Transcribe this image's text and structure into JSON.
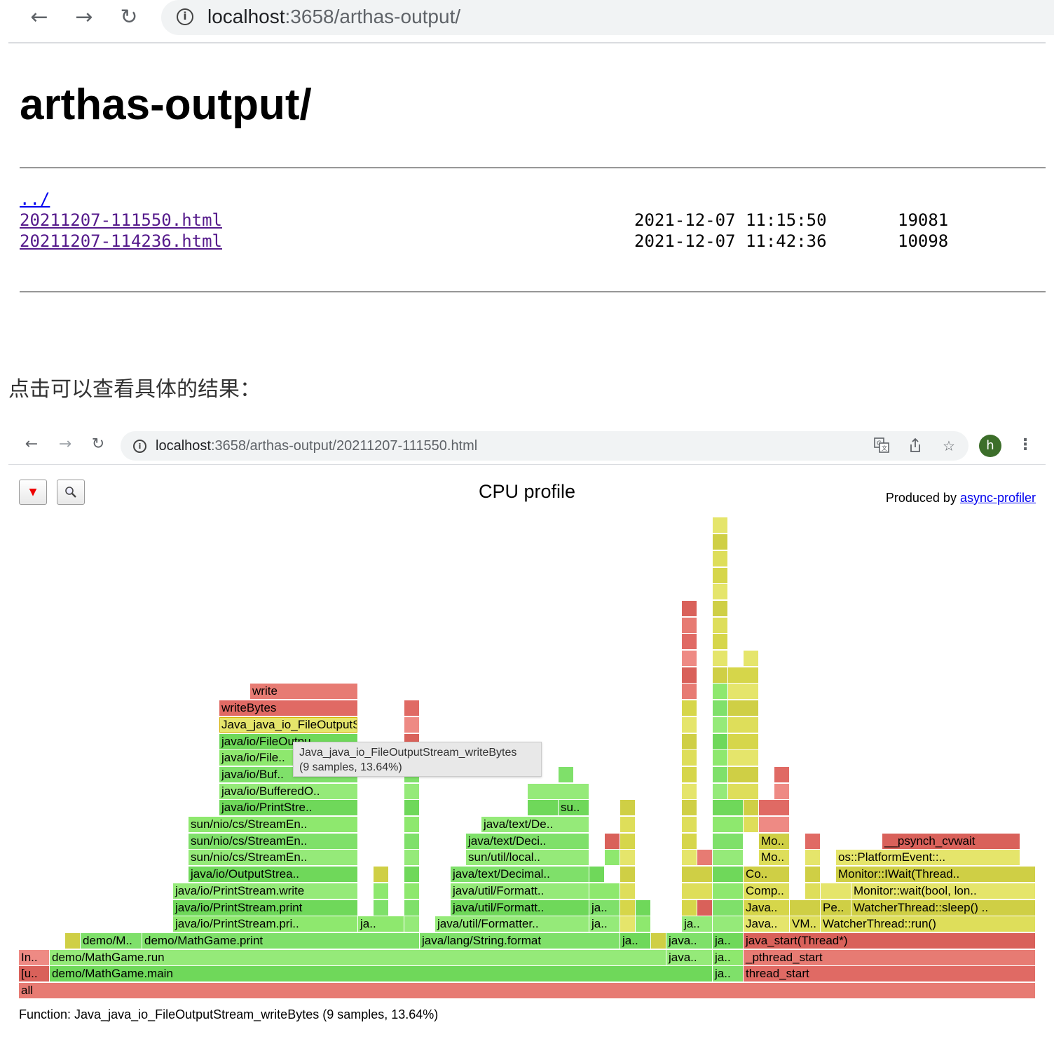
{
  "browser_top": {
    "url_host": "localhost",
    "url_rest": ":3658/arthas-output/"
  },
  "listing": {
    "heading": "arthas-output/",
    "parent_link": "../",
    "entries": [
      {
        "name": "20211207-111550.html",
        "date": "2021-12-07 11:15:50",
        "size": "19081"
      },
      {
        "name": "20211207-114236.html",
        "date": "2021-12-07 11:42:36",
        "size": "10098"
      }
    ]
  },
  "caption": "点击可以查看具体的结果：",
  "browser_inner": {
    "url_host": "localhost",
    "url_rest": ":3658/arthas-output/20211207-111550.html",
    "avatar_letter": "h",
    "icons": [
      "back-icon",
      "forward-icon",
      "reload-icon",
      "info-icon",
      "translate-icon",
      "share-icon",
      "star-icon",
      "kebab-menu-icon"
    ]
  },
  "flamegraph": {
    "title": "CPU profile",
    "produced_by_prefix": "Produced by ",
    "produced_by_link": "async-profiler",
    "tooltip_line1": "Java_java_io_FileOutputStream_writeBytes",
    "tooltip_line2": "(9 samples, 13.64%)",
    "status": "Function: Java_java_io_FileOutputStream_writeBytes (9 samples, 13.64%)",
    "colors": {
      "green": "#8ee86e",
      "yellow": "#dede5a",
      "red": "#e77b73"
    },
    "frames": [
      {
        "name": "all",
        "c": "r",
        "l": 0,
        "s": 0,
        "w": 1451
      },
      {
        "name": "[u..",
        "c": "r",
        "l": 1,
        "s": 0,
        "w": 44
      },
      {
        "name": "demo/MathGame.main",
        "c": "g",
        "l": 1,
        "s": 44,
        "w": 946
      },
      {
        "name": "ja..",
        "c": "g",
        "l": 1,
        "s": 990,
        "w": 44
      },
      {
        "name": "thread_start",
        "c": "r",
        "l": 1,
        "s": 1034,
        "w": 417
      },
      {
        "name": "In..",
        "c": "r",
        "l": 2,
        "s": 0,
        "w": 44
      },
      {
        "name": "demo/MathGame.run",
        "c": "g",
        "l": 2,
        "s": 44,
        "w": 880
      },
      {
        "name": "java..",
        "c": "g",
        "l": 2,
        "s": 924,
        "w": 66
      },
      {
        "name": "ja..",
        "c": "g",
        "l": 2,
        "s": 990,
        "w": 44
      },
      {
        "name": "_pthread_start",
        "c": "r",
        "l": 2,
        "s": 1034,
        "w": 417
      },
      {
        "name": "",
        "c": "y",
        "l": 3,
        "s": 66,
        "w": 22
      },
      {
        "name": "demo/M..",
        "c": "g",
        "l": 3,
        "s": 88,
        "w": 88
      },
      {
        "name": "demo/MathGame.print",
        "c": "g",
        "l": 3,
        "s": 176,
        "w": 396
      },
      {
        "name": "java/lang/String.format",
        "c": "g",
        "l": 3,
        "s": 572,
        "w": 286
      },
      {
        "name": "ja..",
        "c": "g",
        "l": 3,
        "s": 858,
        "w": 44
      },
      {
        "name": "",
        "c": "y",
        "l": 3,
        "s": 902,
        "w": 22
      },
      {
        "name": "java..",
        "c": "g",
        "l": 3,
        "s": 924,
        "w": 66
      },
      {
        "name": "ja..",
        "c": "g",
        "l": 3,
        "s": 990,
        "w": 44
      },
      {
        "name": "java_start(Thread*)",
        "c": "r",
        "l": 3,
        "s": 1034,
        "w": 417
      },
      {
        "name": "java/io/PrintStream.pri..",
        "c": "g",
        "l": 4,
        "s": 220,
        "w": 264
      },
      {
        "name": "ja..",
        "c": "g",
        "l": 4,
        "s": 484,
        "w": 66
      },
      {
        "name": "",
        "c": "g",
        "l": 4,
        "s": 550,
        "w": 22
      },
      {
        "name": "java/util/Formatter..",
        "c": "g",
        "l": 4,
        "s": 594,
        "w": 220
      },
      {
        "name": "ja..",
        "c": "g",
        "l": 4,
        "s": 814,
        "w": 44
      },
      {
        "name": "",
        "c": "y",
        "l": 4,
        "s": 858,
        "w": 22
      },
      {
        "name": "",
        "c": "g",
        "l": 4,
        "s": 880,
        "w": 22
      },
      {
        "name": "ja..",
        "c": "g",
        "l": 4,
        "s": 946,
        "w": 44
      },
      {
        "name": "",
        "c": "g",
        "l": 4,
        "s": 990,
        "w": 44
      },
      {
        "name": "Java..",
        "c": "y",
        "l": 4,
        "s": 1034,
        "w": 66
      },
      {
        "name": "VM..",
        "c": "y",
        "l": 4,
        "s": 1100,
        "w": 44
      },
      {
        "name": "WatcherThread::run()",
        "c": "y",
        "l": 4,
        "s": 1144,
        "w": 307
      },
      {
        "name": "java/io/PrintStream.print",
        "c": "g",
        "l": 5,
        "s": 220,
        "w": 264
      },
      {
        "name": "",
        "c": "g",
        "l": 5,
        "s": 506,
        "w": 22
      },
      {
        "name": "",
        "c": "g",
        "l": 5,
        "s": 550,
        "w": 22
      },
      {
        "name": "java/util/Formatt..",
        "c": "g",
        "l": 5,
        "s": 616,
        "w": 198
      },
      {
        "name": "ja..",
        "c": "g",
        "l": 5,
        "s": 814,
        "w": 44
      },
      {
        "name": "",
        "c": "y",
        "l": 5,
        "s": 858,
        "w": 22
      },
      {
        "name": "",
        "c": "g",
        "l": 5,
        "s": 880,
        "w": 22
      },
      {
        "name": "",
        "c": "y",
        "l": 5,
        "s": 946,
        "w": 22
      },
      {
        "name": "",
        "c": "r",
        "l": 5,
        "s": 968,
        "w": 22
      },
      {
        "name": "",
        "c": "g",
        "l": 5,
        "s": 990,
        "w": 44
      },
      {
        "name": "Java..",
        "c": "y",
        "l": 5,
        "s": 1034,
        "w": 66
      },
      {
        "name": "",
        "c": "y",
        "l": 5,
        "s": 1100,
        "w": 44
      },
      {
        "name": "Pe..",
        "c": "y",
        "l": 5,
        "s": 1144,
        "w": 44
      },
      {
        "name": "WatcherThread::sleep() ..",
        "c": "y",
        "l": 5,
        "s": 1188,
        "w": 263
      },
      {
        "name": "java/io/PrintStream.write",
        "c": "g",
        "l": 6,
        "s": 220,
        "w": 264
      },
      {
        "name": "",
        "c": "g",
        "l": 6,
        "s": 506,
        "w": 22
      },
      {
        "name": "",
        "c": "g",
        "l": 6,
        "s": 550,
        "w": 22
      },
      {
        "name": "java/util/Formatt..",
        "c": "g",
        "l": 6,
        "s": 616,
        "w": 198
      },
      {
        "name": "",
        "c": "g",
        "l": 6,
        "s": 814,
        "w": 44
      },
      {
        "name": "",
        "c": "y",
        "l": 6,
        "s": 858,
        "w": 22
      },
      {
        "name": "",
        "c": "y",
        "l": 6,
        "s": 946,
        "w": 44
      },
      {
        "name": "",
        "c": "g",
        "l": 6,
        "s": 990,
        "w": 44
      },
      {
        "name": "Comp..",
        "c": "y",
        "l": 6,
        "s": 1034,
        "w": 66
      },
      {
        "name": "",
        "c": "y",
        "l": 6,
        "s": 1122,
        "w": 22
      },
      {
        "name": "",
        "c": "y",
        "l": 6,
        "s": 1144,
        "w": 44
      },
      {
        "name": "Monitor::wait(bool, lon..",
        "c": "y",
        "l": 6,
        "s": 1188,
        "w": 263
      },
      {
        "name": "java/io/OutputStrea..",
        "c": "g",
        "l": 7,
        "s": 242,
        "w": 242
      },
      {
        "name": "",
        "c": "y",
        "l": 7,
        "s": 506,
        "w": 22
      },
      {
        "name": "",
        "c": "g",
        "l": 7,
        "s": 550,
        "w": 22
      },
      {
        "name": "java/text/Decimal..",
        "c": "g",
        "l": 7,
        "s": 616,
        "w": 198
      },
      {
        "name": "",
        "c": "g",
        "l": 7,
        "s": 814,
        "w": 22
      },
      {
        "name": "",
        "c": "y",
        "l": 7,
        "s": 858,
        "w": 22
      },
      {
        "name": "",
        "c": "y",
        "l": 7,
        "s": 946,
        "w": 44
      },
      {
        "name": "",
        "c": "g",
        "l": 7,
        "s": 990,
        "w": 44
      },
      {
        "name": "Co..",
        "c": "y",
        "l": 7,
        "s": 1034,
        "w": 66
      },
      {
        "name": "",
        "c": "y",
        "l": 7,
        "s": 1122,
        "w": 22
      },
      {
        "name": "Monitor::IWait(Thread..",
        "c": "y",
        "l": 7,
        "s": 1166,
        "w": 285
      },
      {
        "name": "sun/nio/cs/StreamEn..",
        "c": "g",
        "l": 8,
        "s": 242,
        "w": 242
      },
      {
        "name": "",
        "c": "g",
        "l": 8,
        "s": 550,
        "w": 22
      },
      {
        "name": "sun/util/local..",
        "c": "g",
        "l": 8,
        "s": 638,
        "w": 176
      },
      {
        "name": "",
        "c": "g",
        "l": 8,
        "s": 836,
        "w": 22
      },
      {
        "name": "",
        "c": "y",
        "l": 8,
        "s": 858,
        "w": 22
      },
      {
        "name": "",
        "c": "y",
        "l": 8,
        "s": 946,
        "w": 22
      },
      {
        "name": "",
        "c": "r",
        "l": 8,
        "s": 968,
        "w": 22
      },
      {
        "name": "",
        "c": "g",
        "l": 8,
        "s": 990,
        "w": 44
      },
      {
        "name": "Mo..",
        "c": "y",
        "l": 8,
        "s": 1056,
        "w": 44
      },
      {
        "name": "",
        "c": "y",
        "l": 8,
        "s": 1122,
        "w": 22
      },
      {
        "name": "os::PlatformEvent::..",
        "c": "y",
        "l": 8,
        "s": 1166,
        "w": 263
      },
      {
        "name": "sun/nio/cs/StreamEn..",
        "c": "g",
        "l": 9,
        "s": 242,
        "w": 242
      },
      {
        "name": "",
        "c": "g",
        "l": 9,
        "s": 550,
        "w": 22
      },
      {
        "name": "java/text/Deci..",
        "c": "g",
        "l": 9,
        "s": 638,
        "w": 176
      },
      {
        "name": "",
        "c": "r",
        "l": 9,
        "s": 836,
        "w": 22
      },
      {
        "name": "",
        "c": "y",
        "l": 9,
        "s": 858,
        "w": 22
      },
      {
        "name": "",
        "c": "y",
        "l": 9,
        "s": 946,
        "w": 22
      },
      {
        "name": "",
        "c": "g",
        "l": 9,
        "s": 990,
        "w": 44
      },
      {
        "name": "Mo..",
        "c": "y",
        "l": 9,
        "s": 1056,
        "w": 44
      },
      {
        "name": "",
        "c": "r",
        "l": 9,
        "s": 1122,
        "w": 22
      },
      {
        "name": "__psynch_cvwait",
        "c": "r",
        "l": 9,
        "s": 1232,
        "w": 197
      },
      {
        "name": "sun/nio/cs/StreamEn..",
        "c": "g",
        "l": 10,
        "s": 242,
        "w": 242
      },
      {
        "name": "",
        "c": "g",
        "l": 10,
        "s": 550,
        "w": 22
      },
      {
        "name": "java/text/De..",
        "c": "g",
        "l": 10,
        "s": 660,
        "w": 154
      },
      {
        "name": "",
        "c": "y",
        "l": 10,
        "s": 858,
        "w": 22
      },
      {
        "name": "",
        "c": "y",
        "l": 10,
        "s": 946,
        "w": 22
      },
      {
        "name": "",
        "c": "g",
        "l": 10,
        "s": 990,
        "w": 44
      },
      {
        "name": "",
        "c": "y",
        "l": 10,
        "s": 1034,
        "w": 22
      },
      {
        "name": "",
        "c": "r",
        "l": 10,
        "s": 1056,
        "w": 44
      },
      {
        "name": "java/io/PrintStre..",
        "c": "g",
        "l": 11,
        "s": 286,
        "w": 198
      },
      {
        "name": "",
        "c": "g",
        "l": 11,
        "s": 550,
        "w": 22
      },
      {
        "name": "",
        "c": "g",
        "l": 11,
        "s": 726,
        "w": 44
      },
      {
        "name": "su..",
        "c": "g",
        "l": 11,
        "s": 770,
        "w": 44
      },
      {
        "name": "",
        "c": "y",
        "l": 11,
        "s": 858,
        "w": 22
      },
      {
        "name": "",
        "c": "y",
        "l": 11,
        "s": 946,
        "w": 22
      },
      {
        "name": "",
        "c": "g",
        "l": 11,
        "s": 990,
        "w": 44
      },
      {
        "name": "",
        "c": "y",
        "l": 11,
        "s": 1034,
        "w": 22
      },
      {
        "name": "",
        "c": "r",
        "l": 11,
        "s": 1056,
        "w": 44
      },
      {
        "name": "java/io/BufferedO..",
        "c": "g",
        "l": 12,
        "s": 286,
        "w": 198
      },
      {
        "name": "",
        "c": "g",
        "l": 12,
        "s": 550,
        "w": 22
      },
      {
        "name": "",
        "c": "g",
        "l": 12,
        "s": 726,
        "w": 88
      },
      {
        "name": "",
        "c": "y",
        "l": 12,
        "s": 946,
        "w": 22
      },
      {
        "name": "",
        "c": "g",
        "l": 12,
        "s": 990,
        "w": 22
      },
      {
        "name": "",
        "c": "y",
        "l": 12,
        "s": 1012,
        "w": 44
      },
      {
        "name": "",
        "c": "r",
        "l": 12,
        "s": 1078,
        "w": 22
      },
      {
        "name": "java/io/Buf..",
        "c": "g",
        "l": 13,
        "s": 286,
        "w": 198
      },
      {
        "name": "",
        "c": "g",
        "l": 13,
        "s": 550,
        "w": 22
      },
      {
        "name": "",
        "c": "g",
        "l": 13,
        "s": 770,
        "w": 22
      },
      {
        "name": "",
        "c": "y",
        "l": 13,
        "s": 946,
        "w": 22
      },
      {
        "name": "",
        "c": "g",
        "l": 13,
        "s": 990,
        "w": 22
      },
      {
        "name": "",
        "c": "y",
        "l": 13,
        "s": 1012,
        "w": 44
      },
      {
        "name": "",
        "c": "r",
        "l": 13,
        "s": 1078,
        "w": 22
      },
      {
        "name": "java/io/File..",
        "c": "g",
        "l": 14,
        "s": 286,
        "w": 198
      },
      {
        "name": "",
        "c": "r",
        "l": 14,
        "s": 550,
        "w": 22
      },
      {
        "name": "",
        "c": "y",
        "l": 14,
        "s": 946,
        "w": 22
      },
      {
        "name": "",
        "c": "g",
        "l": 14,
        "s": 990,
        "w": 22
      },
      {
        "name": "",
        "c": "y",
        "l": 14,
        "s": 1012,
        "w": 44
      },
      {
        "name": "java/io/FileOutpu..",
        "c": "g",
        "l": 15,
        "s": 286,
        "w": 198
      },
      {
        "name": "",
        "c": "r",
        "l": 15,
        "s": 550,
        "w": 22
      },
      {
        "name": "",
        "c": "y",
        "l": 15,
        "s": 946,
        "w": 22
      },
      {
        "name": "",
        "c": "g",
        "l": 15,
        "s": 990,
        "w": 22
      },
      {
        "name": "",
        "c": "y",
        "l": 15,
        "s": 1012,
        "w": 44
      },
      {
        "name": "Java_java_io_FileOutputStream_writeBytes",
        "c": "y",
        "l": 16,
        "s": 286,
        "w": 198,
        "sel": true
      },
      {
        "name": "",
        "c": "r",
        "l": 16,
        "s": 550,
        "w": 22
      },
      {
        "name": "",
        "c": "y",
        "l": 16,
        "s": 946,
        "w": 22
      },
      {
        "name": "",
        "c": "g",
        "l": 16,
        "s": 990,
        "w": 22
      },
      {
        "name": "",
        "c": "y",
        "l": 16,
        "s": 1012,
        "w": 44
      },
      {
        "name": "writeBytes",
        "c": "r",
        "l": 17,
        "s": 286,
        "w": 198
      },
      {
        "name": "",
        "c": "r",
        "l": 17,
        "s": 550,
        "w": 22
      },
      {
        "name": "",
        "c": "y",
        "l": 17,
        "s": 946,
        "w": 22
      },
      {
        "name": "",
        "c": "g",
        "l": 17,
        "s": 990,
        "w": 22
      },
      {
        "name": "",
        "c": "y",
        "l": 17,
        "s": 1012,
        "w": 44
      },
      {
        "name": "write",
        "c": "r",
        "l": 18,
        "s": 330,
        "w": 154
      },
      {
        "name": "",
        "c": "r",
        "l": 18,
        "s": 946,
        "w": 22
      },
      {
        "name": "",
        "c": "g",
        "l": 18,
        "s": 990,
        "w": 22
      },
      {
        "name": "",
        "c": "y",
        "l": 18,
        "s": 1012,
        "w": 44
      },
      {
        "name": "",
        "c": "r",
        "l": 19,
        "s": 946,
        "w": 22
      },
      {
        "name": "",
        "c": "y",
        "l": 19,
        "s": 990,
        "w": 22
      },
      {
        "name": "",
        "c": "y",
        "l": 19,
        "s": 1012,
        "w": 44
      },
      {
        "name": "",
        "c": "r",
        "l": 20,
        "s": 946,
        "w": 22
      },
      {
        "name": "",
        "c": "y",
        "l": 20,
        "s": 990,
        "w": 22
      },
      {
        "name": "",
        "c": "y",
        "l": 20,
        "s": 1034,
        "w": 22
      },
      {
        "name": "",
        "c": "r",
        "l": 21,
        "s": 946,
        "w": 22
      },
      {
        "name": "",
        "c": "y",
        "l": 21,
        "s": 990,
        "w": 22
      },
      {
        "name": "",
        "c": "r",
        "l": 22,
        "s": 946,
        "w": 22
      },
      {
        "name": "",
        "c": "y",
        "l": 22,
        "s": 990,
        "w": 22
      },
      {
        "name": "",
        "c": "r",
        "l": 23,
        "s": 946,
        "w": 22
      },
      {
        "name": "",
        "c": "y",
        "l": 23,
        "s": 990,
        "w": 22
      },
      {
        "name": "",
        "c": "y",
        "l": 24,
        "s": 990,
        "w": 22
      },
      {
        "name": "",
        "c": "y",
        "l": 25,
        "s": 990,
        "w": 22
      },
      {
        "name": "",
        "c": "y",
        "l": 26,
        "s": 990,
        "w": 22
      },
      {
        "name": "",
        "c": "y",
        "l": 27,
        "s": 990,
        "w": 22
      },
      {
        "name": "",
        "c": "y",
        "l": 28,
        "s": 990,
        "w": 22
      }
    ]
  }
}
